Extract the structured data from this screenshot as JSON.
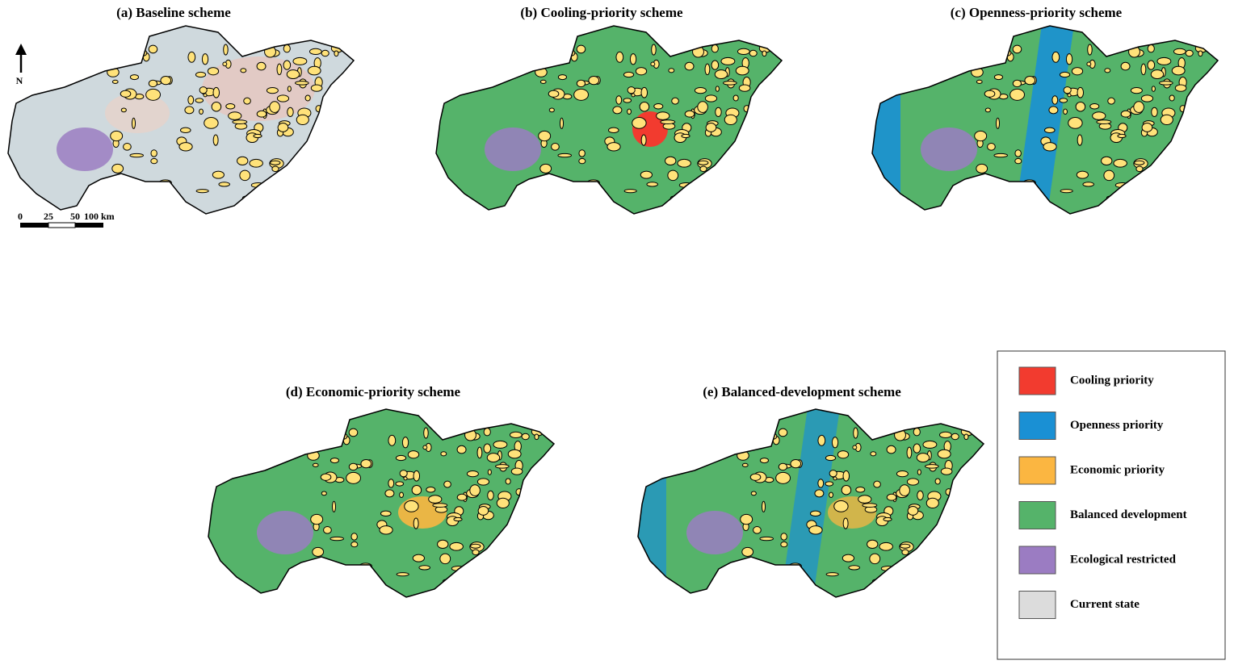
{
  "panels": [
    {
      "title": "(a) Baseline scheme"
    },
    {
      "title": "(b) Cooling-priority scheme"
    },
    {
      "title": "(c) Openness-priority scheme"
    },
    {
      "title": "(d) Economic-priority scheme"
    },
    {
      "title": "(e) Balanced-development scheme"
    }
  ],
  "north_arrow": "N",
  "scale_bar": [
    "0",
    "25",
    "50",
    "100 km"
  ],
  "legend": {
    "items": [
      {
        "label": "Cooling priority",
        "color": "#f23b2f"
      },
      {
        "label": "Openness priority",
        "color": "#1a90d4"
      },
      {
        "label": "Economic priority",
        "color": "#fbb641"
      },
      {
        "label": "Balanced development",
        "color": "#55b36a"
      },
      {
        "label": "Ecological restricted",
        "color": "#9b7cc2"
      },
      {
        "label": "Current state",
        "color": "#dcdcdc"
      }
    ]
  }
}
